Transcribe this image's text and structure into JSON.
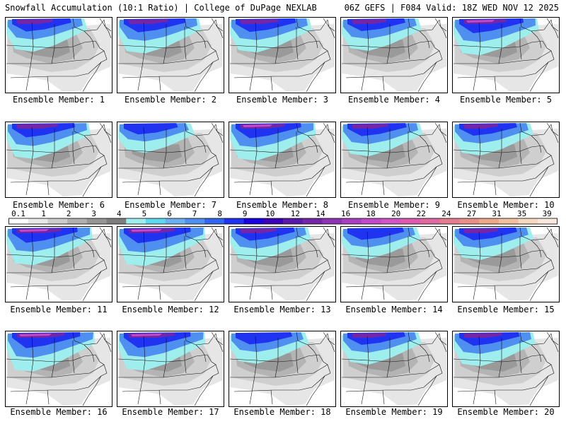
{
  "header": {
    "left": "Snowfall Accumulation (10:1 Ratio) | College of DuPage NEXLAB",
    "right": "06Z GEFS | F084 Valid: 18Z WED NOV 12 2025"
  },
  "colorbar": {
    "tick_labels": [
      "0.1",
      "1",
      "2",
      "3",
      "4",
      "5",
      "6",
      "7",
      "8",
      "9",
      "10",
      "12",
      "14",
      "16",
      "18",
      "20",
      "22",
      "24",
      "27",
      "31",
      "35",
      "39"
    ],
    "colors": [
      "#ffffff",
      "#e8e8e8",
      "#cccccc",
      "#b0b0b0",
      "#969696",
      "#7e7e7e",
      "#9feeee",
      "#5fd8f0",
      "#6ab0ee",
      "#4f8ff0",
      "#3366ee",
      "#1f33f0",
      "#1a00e0",
      "#3a00b8",
      "#5a1aa8",
      "#7426a8",
      "#8f33b5",
      "#a63fc0",
      "#c04ac8",
      "#d055c5",
      "#dd5ab0",
      "#e06aa0",
      "#e47d90",
      "#e89088",
      "#eca888",
      "#f0c0a0",
      "#f5d8c0",
      "#fae8dc"
    ]
  },
  "members": [
    {
      "label": "Ensemble Member: 1",
      "snow_level": 0.55
    },
    {
      "label": "Ensemble Member: 2",
      "snow_level": 0.65
    },
    {
      "label": "Ensemble Member: 3",
      "snow_level": 0.6
    },
    {
      "label": "Ensemble Member: 4",
      "snow_level": 0.5
    },
    {
      "label": "Ensemble Member: 5",
      "snow_level": 0.75
    },
    {
      "label": "Ensemble Member: 6",
      "snow_level": 0.7
    },
    {
      "label": "Ensemble Member: 7",
      "snow_level": 0.35
    },
    {
      "label": "Ensemble Member: 8",
      "snow_level": 0.8
    },
    {
      "label": "Ensemble Member: 9",
      "snow_level": 0.55
    },
    {
      "label": "Ensemble Member: 10",
      "snow_level": 0.5
    },
    {
      "label": "Ensemble Member: 11",
      "snow_level": 0.8
    },
    {
      "label": "Ensemble Member: 12",
      "snow_level": 0.85
    },
    {
      "label": "Ensemble Member: 13",
      "snow_level": 0.55
    },
    {
      "label": "Ensemble Member: 14",
      "snow_level": 0.45
    },
    {
      "label": "Ensemble Member: 15",
      "snow_level": 0.5
    },
    {
      "label": "Ensemble Member: 16",
      "snow_level": 0.9
    },
    {
      "label": "Ensemble Member: 17",
      "snow_level": 0.85
    },
    {
      "label": "Ensemble Member: 18",
      "snow_level": 0.45
    },
    {
      "label": "Ensemble Member: 19",
      "snow_level": 0.5
    },
    {
      "label": "Ensemble Member: 20",
      "snow_level": 0.6
    }
  ]
}
